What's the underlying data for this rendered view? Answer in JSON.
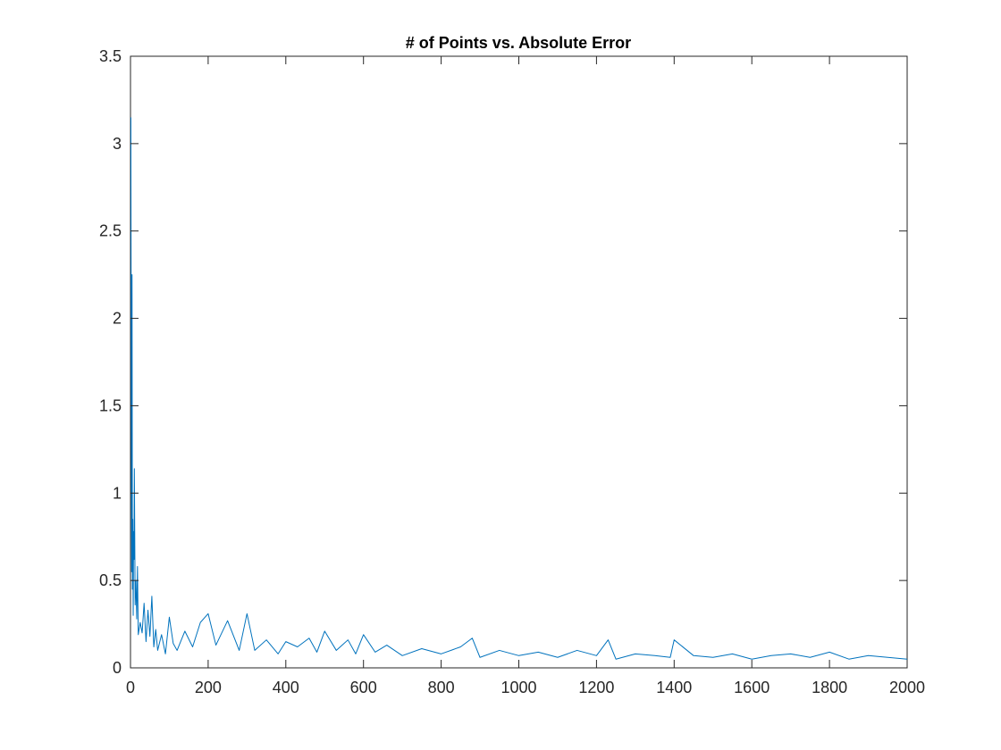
{
  "chart_data": {
    "type": "line",
    "title": "# of Points vs. Absolute Error",
    "xlabel": "",
    "ylabel": "",
    "xlim": [
      0,
      2000
    ],
    "ylim": [
      0,
      3.5
    ],
    "xticks": [
      0,
      200,
      400,
      600,
      800,
      1000,
      1200,
      1400,
      1600,
      1800,
      2000
    ],
    "yticks": [
      0,
      0.5,
      1,
      1.5,
      2,
      2.5,
      3,
      3.5
    ],
    "xtick_labels": [
      "0",
      "200",
      "400",
      "600",
      "800",
      "1000",
      "1200",
      "1400",
      "1600",
      "1800",
      "2000"
    ],
    "ytick_labels": [
      "0",
      "0.5",
      "1",
      "1.5",
      "2",
      "2.5",
      "3",
      "3.5"
    ],
    "grid": false,
    "line_color": "#0072BD",
    "series": [
      {
        "x": [
          1,
          2,
          3,
          4,
          5,
          6,
          7,
          8,
          9,
          10,
          12,
          14,
          16,
          18,
          20,
          25,
          30,
          35,
          40,
          45,
          50,
          55,
          60,
          65,
          70,
          80,
          90,
          100,
          110,
          120,
          140,
          160,
          180,
          200,
          220,
          250,
          280,
          300,
          320,
          350,
          380,
          400,
          430,
          460,
          480,
          500,
          530,
          560,
          580,
          600,
          630,
          660,
          700,
          750,
          800,
          850,
          880,
          900,
          950,
          1000,
          1050,
          1100,
          1150,
          1200,
          1230,
          1250,
          1300,
          1350,
          1390,
          1400,
          1450,
          1500,
          1550,
          1600,
          1650,
          1700,
          1750,
          1800,
          1850,
          1900,
          1950,
          2000
        ],
        "values": [
          3.15,
          1.5,
          0.55,
          2.25,
          0.45,
          0.85,
          0.3,
          0.78,
          0.62,
          1.14,
          0.36,
          0.5,
          0.28,
          0.58,
          0.19,
          0.26,
          0.2,
          0.37,
          0.15,
          0.33,
          0.18,
          0.41,
          0.12,
          0.22,
          0.1,
          0.19,
          0.08,
          0.29,
          0.14,
          0.1,
          0.21,
          0.12,
          0.26,
          0.31,
          0.13,
          0.27,
          0.1,
          0.31,
          0.1,
          0.16,
          0.08,
          0.15,
          0.12,
          0.17,
          0.09,
          0.21,
          0.1,
          0.16,
          0.08,
          0.19,
          0.09,
          0.13,
          0.07,
          0.11,
          0.08,
          0.12,
          0.17,
          0.06,
          0.1,
          0.07,
          0.09,
          0.06,
          0.1,
          0.07,
          0.16,
          0.05,
          0.08,
          0.07,
          0.06,
          0.16,
          0.07,
          0.06,
          0.08,
          0.05,
          0.07,
          0.08,
          0.06,
          0.09,
          0.05,
          0.07,
          0.06,
          0.05
        ]
      }
    ]
  }
}
